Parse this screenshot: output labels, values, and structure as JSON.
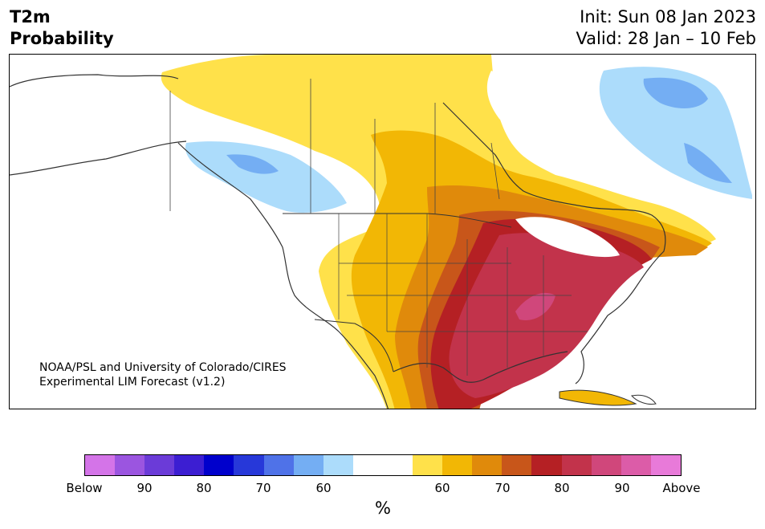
{
  "header": {
    "title_line1": "T2m",
    "title_line2": "Probability",
    "init": "Init: Sun 08 Jan 2023",
    "valid": "Valid: 28 Jan – 10 Feb"
  },
  "map": {
    "credit_line1": "NOAA/PSL and University of Colorado/CIRES",
    "credit_line2": "Experimental LIM Forecast (v1.2)"
  },
  "colorbar": {
    "colors": [
      "#d474e8",
      "#9b55e0",
      "#6b3bd8",
      "#3c1ed2",
      "#0000cc",
      "#2738d9",
      "#4f72e8",
      "#74aef3",
      "#acdcfb",
      "#ffffff",
      "#ffffff",
      "#ffe14a",
      "#f2b705",
      "#e08a0b",
      "#c8561a",
      "#b52024",
      "#c2334b",
      "#d0477b",
      "#dc5ca8",
      "#e87ad9"
    ],
    "tick_labels": [
      "Below",
      "90",
      "80",
      "70",
      "60",
      "60",
      "70",
      "80",
      "90",
      "Above"
    ],
    "unit": "%"
  }
}
